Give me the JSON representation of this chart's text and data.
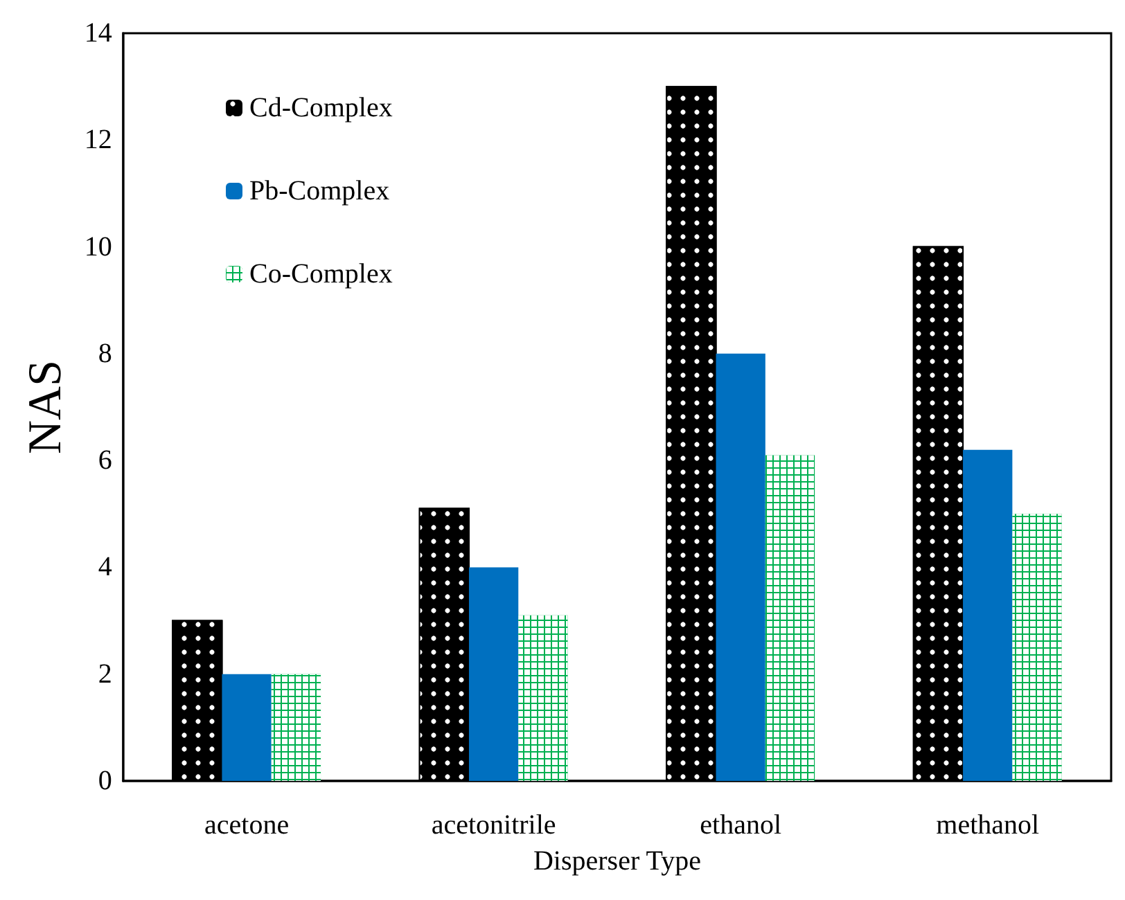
{
  "chart_data": {
    "type": "bar",
    "xlabel": "Disperser Type",
    "ylabel": "NAS",
    "categories": [
      "acetone",
      "acetonitrile",
      "ethanol",
      "methanol"
    ],
    "series": [
      {
        "name": "Cd-Complex",
        "color": "#000000",
        "values": [
          3,
          5.1,
          13,
          10
        ]
      },
      {
        "name": "Pb-Complex",
        "color": "#0070c0",
        "values": [
          2,
          4,
          8,
          6.2
        ]
      },
      {
        "name": "Co-Complex",
        "color": "#00b050",
        "values": [
          2,
          3.1,
          6.1,
          5
        ]
      }
    ],
    "ylim": [
      0,
      14
    ],
    "yticks": [
      0,
      2,
      4,
      6,
      8,
      10,
      12,
      14
    ],
    "grid": false,
    "legend": "top left"
  }
}
